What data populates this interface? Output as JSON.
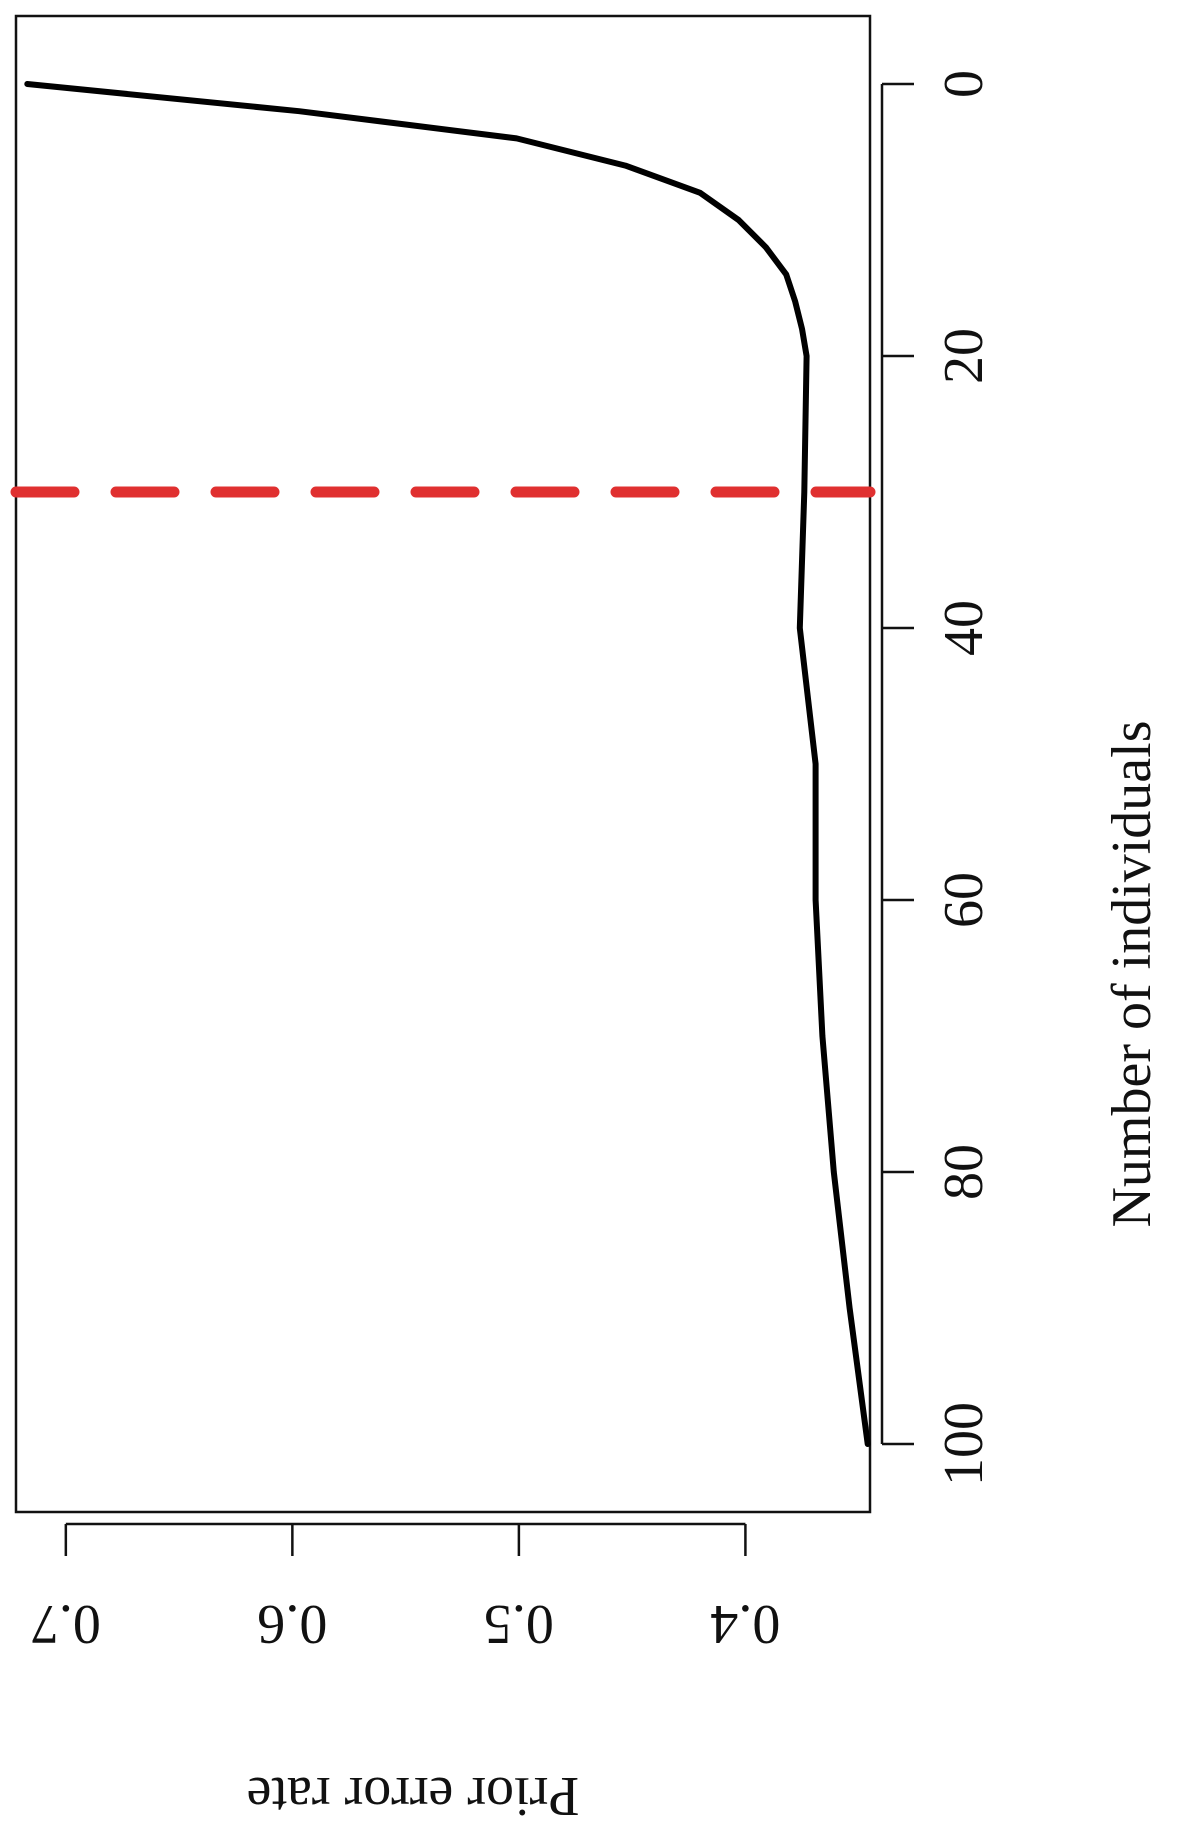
{
  "chart_data": {
    "type": "line",
    "orientation": "rotated-90-clockwise",
    "title": "",
    "xlabel": "Number of individuals",
    "ylabel": "Prior error rate",
    "xlim": [
      -5,
      105
    ],
    "ylim": [
      0.345,
      0.722
    ],
    "x_ticks": [
      0,
      20,
      40,
      60,
      80,
      100
    ],
    "x_tick_labels": [
      "0",
      "20",
      "40",
      "60",
      "80",
      "100"
    ],
    "y_ticks": [
      0.4,
      0.5,
      0.6,
      0.7
    ],
    "y_tick_labels": [
      "0.4",
      "0.5",
      "0.6",
      "0.7"
    ],
    "grid": false,
    "series": [
      {
        "color": "#000000",
        "line_style": "solid",
        "x": [
          0,
          2,
          4,
          6,
          8,
          10,
          12,
          14,
          16,
          18,
          20,
          30,
          40,
          50,
          60,
          70,
          80,
          90,
          100
        ],
        "y": [
          0.717,
          0.597,
          0.501,
          0.453,
          0.42,
          0.403,
          0.391,
          0.382,
          0.378,
          0.375,
          0.373,
          0.374,
          0.376,
          0.369,
          0.369,
          0.366,
          0.361,
          0.354,
          0.346
        ]
      }
    ],
    "reference_lines": [
      {
        "axis": "x",
        "value": 30,
        "color": "#e03030",
        "line_style": "dashed"
      }
    ]
  }
}
